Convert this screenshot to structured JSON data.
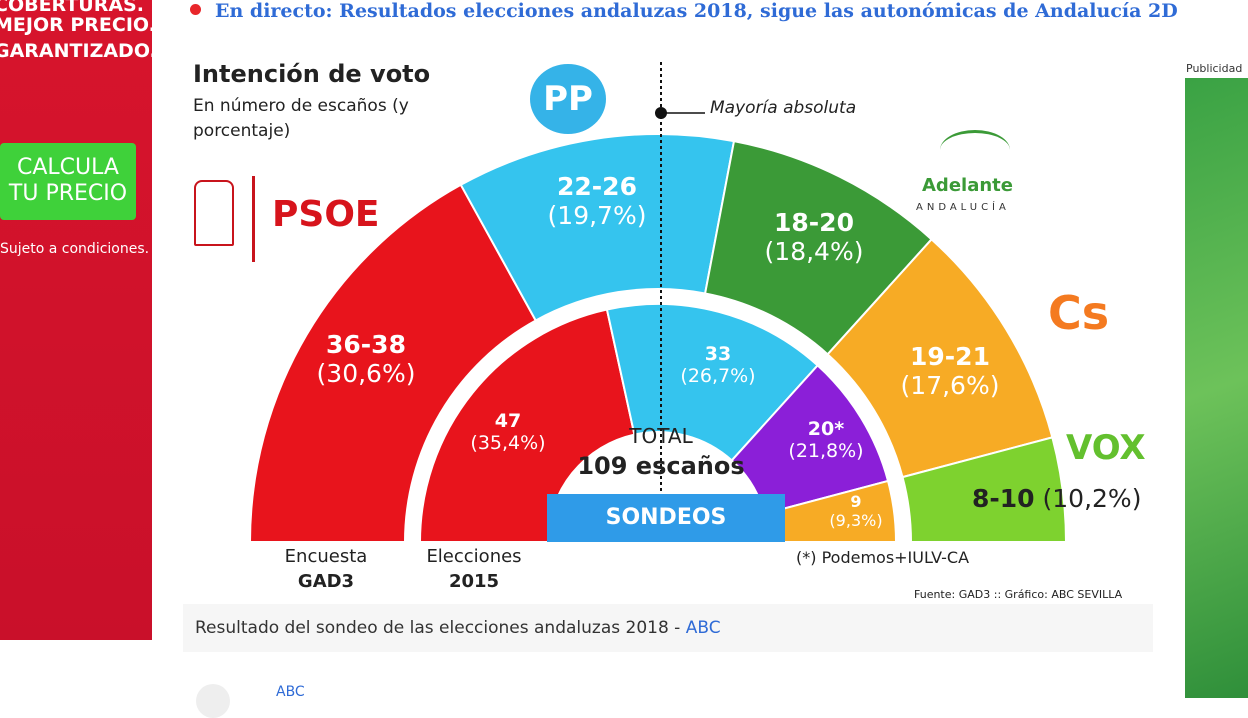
{
  "ad_left": {
    "lines": [
      "COBERTURAS.",
      "MEJOR PRECIO.",
      "GARANTIZADO."
    ],
    "button": "CALCULA TU PRECIO",
    "note": "Sujeto a condiciones."
  },
  "ad_right": {
    "label": "Publicidad"
  },
  "headline": "En directo: Resultados elecciones andaluzas 2018, sigue las autonómicas de Andalucía 2D",
  "caption": {
    "text": "Resultado del sondeo de las elecciones andaluzas 2018 - ",
    "source": "ABC"
  },
  "author_link": "ABC",
  "chart_data": {
    "type": "hemicycle",
    "title": "Intención de voto",
    "subtitle": "En número de escaños (y porcentaje)",
    "majority_label": "Mayoría absoluta",
    "total_label": "TOTAL",
    "total_value": "109 escaños",
    "badge": "SONDEOS",
    "footnote": "(*) Podemos+IULV-CA",
    "source": "Fuente: GAD3 :: Gráfico: ABC SEVILLA",
    "rings": [
      {
        "name": "Encuesta GAD3",
        "label_top": "Encuesta",
        "label_bottom": "GAD3",
        "segments": [
          {
            "party": "PSOE",
            "seats": "36-38",
            "mid": 37,
            "pct": "(30,6%)",
            "color": "#e8141c"
          },
          {
            "party": "PP",
            "seats": "22-26",
            "mid": 24,
            "pct": "(19,7%)",
            "color": "#35c4ee"
          },
          {
            "party": "Adelante Andalucía",
            "seats": "18-20",
            "mid": 19,
            "pct": "(18,4%)",
            "color": "#3b9a37"
          },
          {
            "party": "Cs",
            "seats": "19-21",
            "mid": 20,
            "pct": "(17,6%)",
            "color": "#f7ab25"
          },
          {
            "party": "VOX",
            "seats": "8-10",
            "mid": 9,
            "pct": "(10,2%)",
            "color": "#7ed22f"
          }
        ]
      },
      {
        "name": "Elecciones 2015",
        "label_top": "Elecciones",
        "label_bottom": "2015",
        "segments": [
          {
            "party": "PSOE",
            "seats": "47",
            "mid": 47,
            "pct": "(35,4%)",
            "color": "#e8141c"
          },
          {
            "party": "PP",
            "seats": "33",
            "mid": 33,
            "pct": "(26,7%)",
            "color": "#35c4ee"
          },
          {
            "party": "Podemos+IULV-CA",
            "seats": "20*",
            "mid": 20,
            "pct": "(21,8%)",
            "color": "#8b1fd8"
          },
          {
            "party": "Cs",
            "seats": "9",
            "mid": 9,
            "pct": "(9,3%)",
            "color": "#f7ab25"
          }
        ]
      }
    ],
    "logos": {
      "psoe": "PSOE",
      "adelante": "Adelante",
      "adelante_sub": "ANDALUCÍA",
      "cs": "Cs",
      "vox": "VOX",
      "pp": "PP"
    }
  }
}
